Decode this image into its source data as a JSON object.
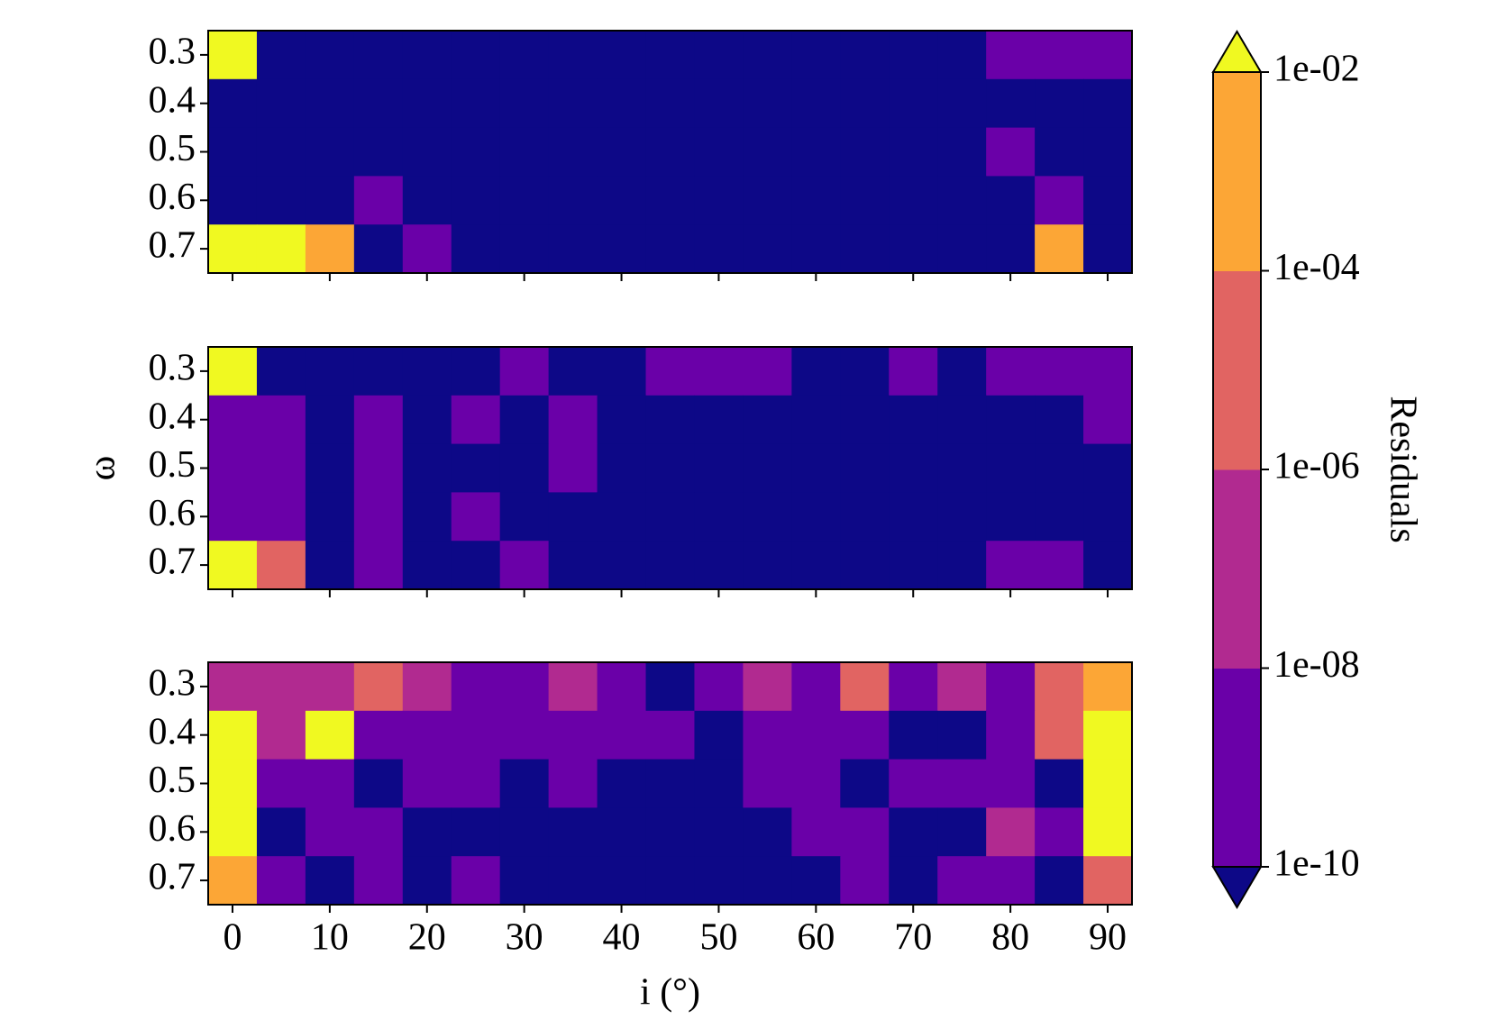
{
  "chart_data": [
    {
      "type": "heatmap",
      "x": [
        0,
        5,
        10,
        15,
        20,
        25,
        30,
        35,
        40,
        45,
        50,
        55,
        60,
        65,
        70,
        75,
        80,
        85,
        90
      ],
      "y": [
        0.3,
        0.4,
        0.5,
        0.6,
        0.7
      ],
      "xlim": [
        -2.5,
        92.5
      ],
      "ylim": [
        0.75,
        0.25
      ],
      "xticks": [
        0,
        10,
        20,
        30,
        40,
        50,
        60,
        70,
        80,
        90
      ],
      "show_xticklabels": false,
      "yticks": [
        0.3,
        0.4,
        0.5,
        0.6,
        0.7
      ],
      "z": [
        [
          0.1,
          1e-11,
          1e-11,
          1e-11,
          1e-11,
          1e-11,
          1e-11,
          1e-11,
          1e-11,
          1e-11,
          1e-11,
          1e-11,
          1e-11,
          1e-11,
          1e-11,
          1e-11,
          1e-09,
          1e-09,
          1e-09
        ],
        [
          1e-11,
          1e-11,
          1e-11,
          1e-11,
          1e-11,
          1e-11,
          1e-11,
          1e-11,
          1e-11,
          1e-11,
          1e-11,
          1e-11,
          1e-11,
          1e-11,
          1e-11,
          1e-11,
          1e-11,
          1e-11,
          1e-11
        ],
        [
          1e-11,
          1e-11,
          1e-11,
          1e-11,
          1e-11,
          1e-11,
          1e-11,
          1e-11,
          1e-11,
          1e-11,
          1e-11,
          1e-11,
          1e-11,
          1e-11,
          1e-11,
          1e-11,
          1e-09,
          1e-11,
          1e-11
        ],
        [
          1e-11,
          1e-11,
          1e-11,
          1e-09,
          1e-11,
          1e-11,
          1e-11,
          1e-11,
          1e-11,
          1e-11,
          1e-11,
          1e-11,
          1e-11,
          1e-11,
          1e-11,
          1e-11,
          1e-11,
          1e-09,
          1e-11
        ],
        [
          0.1,
          0.1,
          0.001,
          1e-11,
          1e-09,
          1e-11,
          1e-11,
          1e-11,
          1e-11,
          1e-11,
          1e-11,
          1e-11,
          1e-11,
          1e-11,
          1e-11,
          1e-11,
          1e-11,
          0.001,
          1e-11
        ]
      ]
    },
    {
      "type": "heatmap",
      "x": [
        0,
        5,
        10,
        15,
        20,
        25,
        30,
        35,
        40,
        45,
        50,
        55,
        60,
        65,
        70,
        75,
        80,
        85,
        90
      ],
      "y": [
        0.3,
        0.4,
        0.5,
        0.6,
        0.7
      ],
      "xlim": [
        -2.5,
        92.5
      ],
      "ylim": [
        0.75,
        0.25
      ],
      "xticks": [
        0,
        10,
        20,
        30,
        40,
        50,
        60,
        70,
        80,
        90
      ],
      "show_xticklabels": false,
      "yticks": [
        0.3,
        0.4,
        0.5,
        0.6,
        0.7
      ],
      "ylabel": "ω",
      "z": [
        [
          0.1,
          1e-11,
          1e-11,
          1e-11,
          1e-11,
          1e-11,
          1e-09,
          1e-11,
          1e-11,
          1e-09,
          1e-09,
          1e-09,
          1e-11,
          1e-11,
          1e-09,
          1e-11,
          1e-09,
          1e-09,
          1e-09
        ],
        [
          1e-09,
          1e-09,
          1e-11,
          1e-09,
          1e-11,
          1e-09,
          1e-11,
          1e-09,
          1e-11,
          1e-11,
          1e-11,
          1e-11,
          1e-11,
          1e-11,
          1e-11,
          1e-11,
          1e-11,
          1e-11,
          1e-09
        ],
        [
          1e-09,
          1e-09,
          1e-11,
          1e-09,
          1e-11,
          1e-11,
          1e-11,
          1e-09,
          1e-11,
          1e-11,
          1e-11,
          1e-11,
          1e-11,
          1e-11,
          1e-11,
          1e-11,
          1e-11,
          1e-11,
          1e-11
        ],
        [
          1e-09,
          1e-09,
          1e-11,
          1e-09,
          1e-11,
          1e-09,
          1e-11,
          1e-11,
          1e-11,
          1e-11,
          1e-11,
          1e-11,
          1e-11,
          1e-11,
          1e-11,
          1e-11,
          1e-11,
          1e-11,
          1e-11
        ],
        [
          0.1,
          1e-05,
          1e-11,
          1e-09,
          1e-11,
          1e-11,
          1e-09,
          1e-11,
          1e-11,
          1e-11,
          1e-11,
          1e-11,
          1e-11,
          1e-11,
          1e-11,
          1e-11,
          1e-09,
          1e-09,
          1e-11
        ]
      ]
    },
    {
      "type": "heatmap",
      "x": [
        0,
        5,
        10,
        15,
        20,
        25,
        30,
        35,
        40,
        45,
        50,
        55,
        60,
        65,
        70,
        75,
        80,
        85,
        90
      ],
      "y": [
        0.3,
        0.4,
        0.5,
        0.6,
        0.7
      ],
      "xlim": [
        -2.5,
        92.5
      ],
      "ylim": [
        0.75,
        0.25
      ],
      "xticks": [
        0,
        10,
        20,
        30,
        40,
        50,
        60,
        70,
        80,
        90
      ],
      "show_xticklabels": true,
      "yticks": [
        0.3,
        0.4,
        0.5,
        0.6,
        0.7
      ],
      "xlabel": "i (°)",
      "z": [
        [
          1e-07,
          1e-07,
          1e-07,
          1e-05,
          1e-07,
          1e-09,
          1e-09,
          1e-07,
          1e-09,
          1e-11,
          1e-09,
          1e-07,
          1e-09,
          1e-05,
          1e-09,
          1e-07,
          1e-09,
          1e-05,
          0.001
        ],
        [
          0.1,
          1e-07,
          0.1,
          1e-09,
          1e-09,
          1e-09,
          1e-09,
          1e-09,
          1e-09,
          1e-09,
          1e-11,
          1e-09,
          1e-09,
          1e-09,
          1e-11,
          1e-11,
          1e-09,
          1e-05,
          0.1
        ],
        [
          0.1,
          1e-09,
          1e-09,
          1e-11,
          1e-09,
          1e-09,
          1e-11,
          1e-09,
          1e-11,
          1e-11,
          1e-11,
          1e-09,
          1e-09,
          1e-11,
          1e-09,
          1e-09,
          1e-09,
          1e-11,
          0.1
        ],
        [
          0.1,
          1e-11,
          1e-09,
          1e-09,
          1e-11,
          1e-11,
          1e-11,
          1e-11,
          1e-11,
          1e-11,
          1e-11,
          1e-11,
          1e-09,
          1e-09,
          1e-11,
          1e-11,
          1e-07,
          1e-09,
          0.1
        ],
        [
          0.001,
          1e-09,
          1e-11,
          1e-09,
          1e-11,
          1e-09,
          1e-11,
          1e-11,
          1e-11,
          1e-11,
          1e-11,
          1e-11,
          1e-11,
          1e-09,
          1e-11,
          1e-09,
          1e-09,
          1e-11,
          1e-05
        ]
      ]
    },
    {
      "type": "colorbar",
      "label": "Residuals",
      "log": true,
      "ylim": [
        1e-10,
        0.01
      ],
      "levels": [
        1e-10,
        1e-08,
        1e-06,
        0.0001,
        0.01
      ],
      "yticks": [
        {
          "value": 1e-10,
          "label": "1e-10"
        },
        {
          "value": 1e-08,
          "label": "1e-08"
        },
        {
          "value": 1e-06,
          "label": "1e-06"
        },
        {
          "value": 0.0001,
          "label": "1e-04"
        },
        {
          "value": 0.01,
          "label": "1e-02"
        }
      ],
      "colors": [
        "#6a00a8",
        "#b12a90",
        "#e16462",
        "#fca636"
      ],
      "under_color": "#0d0887",
      "over_color": "#f0f921"
    }
  ]
}
